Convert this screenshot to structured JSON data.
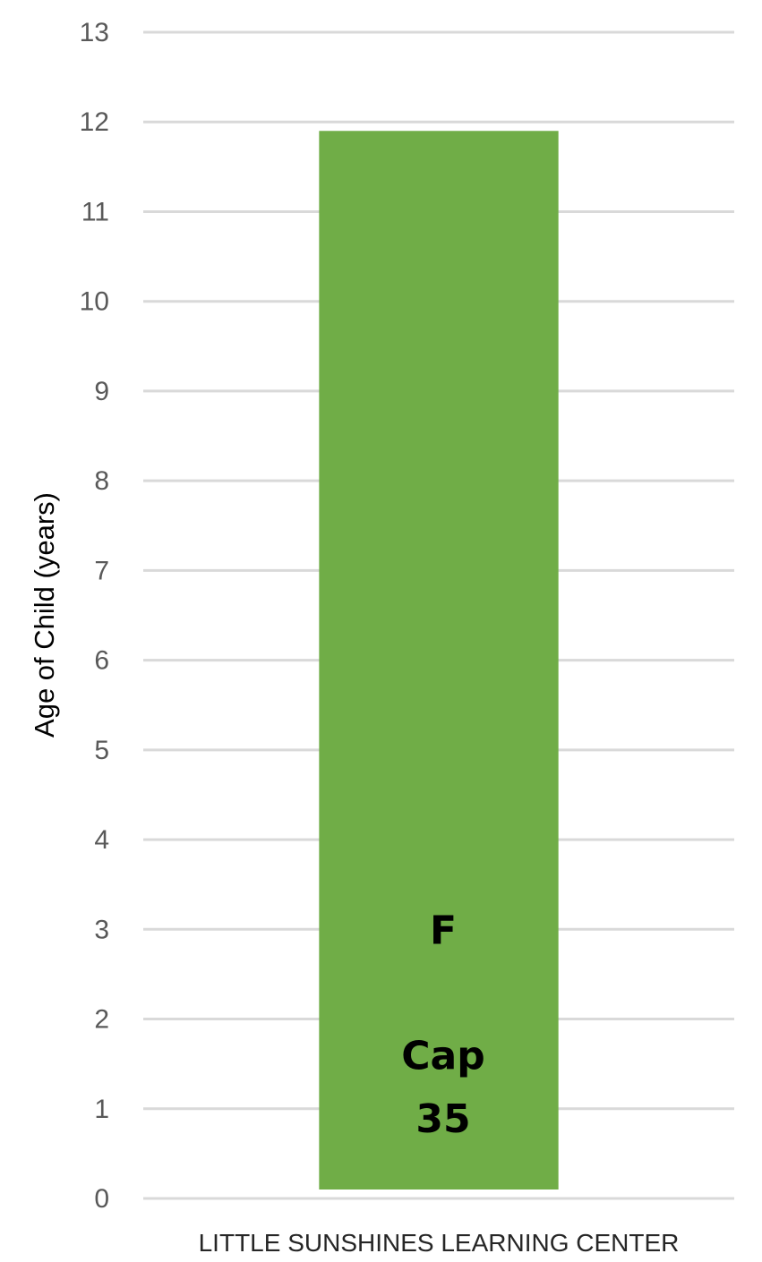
{
  "chart_data": {
    "type": "bar",
    "title": "",
    "xlabel": "",
    "ylabel": "Age of Child (years)",
    "categories": [
      "LITTLE SUNSHINES LEARNING CENTER"
    ],
    "values": [
      11.9
    ],
    "ylim": [
      0,
      13
    ],
    "yticks": [
      0,
      1,
      2,
      3,
      4,
      5,
      6,
      7,
      8,
      9,
      10,
      11,
      12,
      13
    ],
    "grid": true,
    "legend": "none",
    "bar_color": "#70AD47",
    "gridline_color": "#D9D9D9",
    "annotations": [
      {
        "text": "F",
        "y": 3
      },
      {
        "text": "Cap",
        "y": 1.6
      },
      {
        "text": "35",
        "y": 0.9
      }
    ]
  }
}
